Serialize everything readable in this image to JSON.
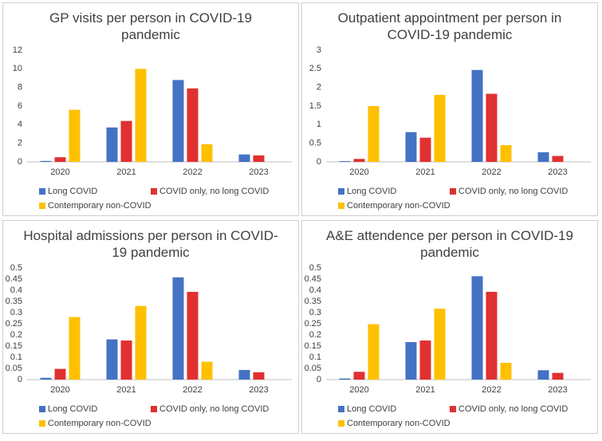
{
  "chart_data": [
    {
      "type": "bar",
      "title": "GP visits per person in COVID-19 pandemic",
      "categories": [
        "2020",
        "2021",
        "2022",
        "2023"
      ],
      "series": [
        {
          "name": "Long COVID",
          "color": "#4472c4",
          "values": [
            0.1,
            3.7,
            8.8,
            0.8
          ]
        },
        {
          "name": "COVID only, no long COVID",
          "color": "#e03131",
          "values": [
            0.5,
            4.4,
            7.9,
            0.7
          ]
        },
        {
          "name": "Contemporary non-COVID",
          "color": "#ffc000",
          "values": [
            5.6,
            10.0,
            1.9,
            null
          ]
        }
      ],
      "ylim": [
        0,
        12
      ],
      "yticks": [
        0,
        2,
        4,
        6,
        8,
        10,
        12
      ],
      "grid": false
    },
    {
      "type": "bar",
      "title": "Outpatient appointment per person in COVID-19 pandemic",
      "categories": [
        "2020",
        "2021",
        "2022",
        "2023"
      ],
      "series": [
        {
          "name": "Long COVID",
          "color": "#4472c4",
          "values": [
            0.02,
            0.8,
            2.47,
            0.26
          ]
        },
        {
          "name": "COVID only, no long COVID",
          "color": "#e03131",
          "values": [
            0.08,
            0.65,
            1.83,
            0.16
          ]
        },
        {
          "name": "Contemporary non-COVID",
          "color": "#ffc000",
          "values": [
            1.5,
            1.8,
            0.45,
            null
          ]
        }
      ],
      "ylim": [
        0,
        3
      ],
      "yticks": [
        0,
        0.5,
        1,
        1.5,
        2,
        2.5,
        3
      ],
      "grid": false
    },
    {
      "type": "bar",
      "title": "Hospital admissions per person in COVID-19 pandemic",
      "categories": [
        "2020",
        "2021",
        "2022",
        "2023"
      ],
      "series": [
        {
          "name": "Long COVID",
          "color": "#4472c4",
          "values": [
            0.008,
            0.18,
            0.458,
            0.043
          ]
        },
        {
          "name": "COVID only, no long COVID",
          "color": "#e03131",
          "values": [
            0.048,
            0.175,
            0.393,
            0.033
          ]
        },
        {
          "name": "Contemporary non-COVID",
          "color": "#ffc000",
          "values": [
            0.28,
            0.33,
            0.08,
            null
          ]
        }
      ],
      "ylim": [
        0,
        0.5
      ],
      "yticks": [
        0,
        0.05,
        0.1,
        0.15,
        0.2,
        0.25,
        0.3,
        0.35,
        0.4,
        0.45,
        0.5
      ],
      "grid": false
    },
    {
      "type": "bar",
      "title": "A&E attendence per person in COVID-19 pandemic",
      "categories": [
        "2020",
        "2021",
        "2022",
        "2023"
      ],
      "series": [
        {
          "name": "Long COVID",
          "color": "#4472c4",
          "values": [
            0.005,
            0.168,
            0.463,
            0.042
          ]
        },
        {
          "name": "COVID only, no long COVID",
          "color": "#e03131",
          "values": [
            0.035,
            0.175,
            0.393,
            0.03
          ]
        },
        {
          "name": "Contemporary non-COVID",
          "color": "#ffc000",
          "values": [
            0.248,
            0.318,
            0.075,
            null
          ]
        }
      ],
      "ylim": [
        0,
        0.5
      ],
      "yticks": [
        0,
        0.05,
        0.1,
        0.15,
        0.2,
        0.25,
        0.3,
        0.35,
        0.4,
        0.45,
        0.5
      ],
      "grid": false
    }
  ]
}
